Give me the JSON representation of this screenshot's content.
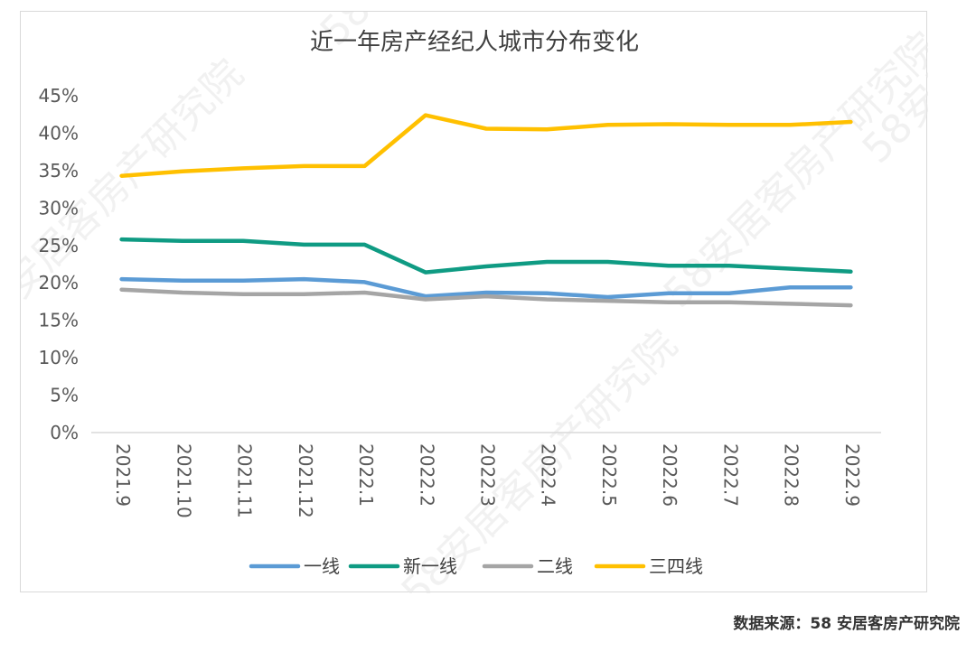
{
  "chart_data": {
    "type": "line",
    "title": "近一年房产经纪人城市分布变化",
    "categories": [
      "2021.9",
      "2021.10",
      "2021.11",
      "2021.12",
      "2022.1",
      "2022.2",
      "2022.3",
      "2022.4",
      "2022.5",
      "2022.6",
      "2022.7",
      "2022.8",
      "2022.9"
    ],
    "y_ticks": [
      "0%",
      "5%",
      "10%",
      "15%",
      "20%",
      "25%",
      "30%",
      "35%",
      "40%",
      "45%"
    ],
    "ylim": [
      0,
      45
    ],
    "series": [
      {
        "name": "一线",
        "color": "#5b9bd5",
        "values": [
          20.5,
          20.3,
          20.3,
          20.5,
          20.1,
          18.2,
          18.7,
          18.6,
          18.1,
          18.6,
          18.6,
          19.4,
          19.4
        ]
      },
      {
        "name": "新一线",
        "color": "#0f9b83",
        "values": [
          25.8,
          25.6,
          25.6,
          25.1,
          25.1,
          21.4,
          22.2,
          22.8,
          22.8,
          22.3,
          22.3,
          21.9,
          21.5
        ]
      },
      {
        "name": "二线",
        "color": "#a5a5a5",
        "values": [
          19.1,
          18.7,
          18.5,
          18.5,
          18.7,
          17.8,
          18.2,
          17.8,
          17.6,
          17.4,
          17.4,
          17.2,
          17.0
        ]
      },
      {
        "name": "三四线",
        "color": "#ffc000",
        "values": [
          34.3,
          34.9,
          35.3,
          35.6,
          35.6,
          42.4,
          40.6,
          40.5,
          41.1,
          41.2,
          41.1,
          41.1,
          41.5
        ]
      }
    ]
  },
  "source": {
    "label": "数据来源：",
    "value": "58 安居客房产研究院"
  },
  "watermark": "58安居客房产研究院"
}
